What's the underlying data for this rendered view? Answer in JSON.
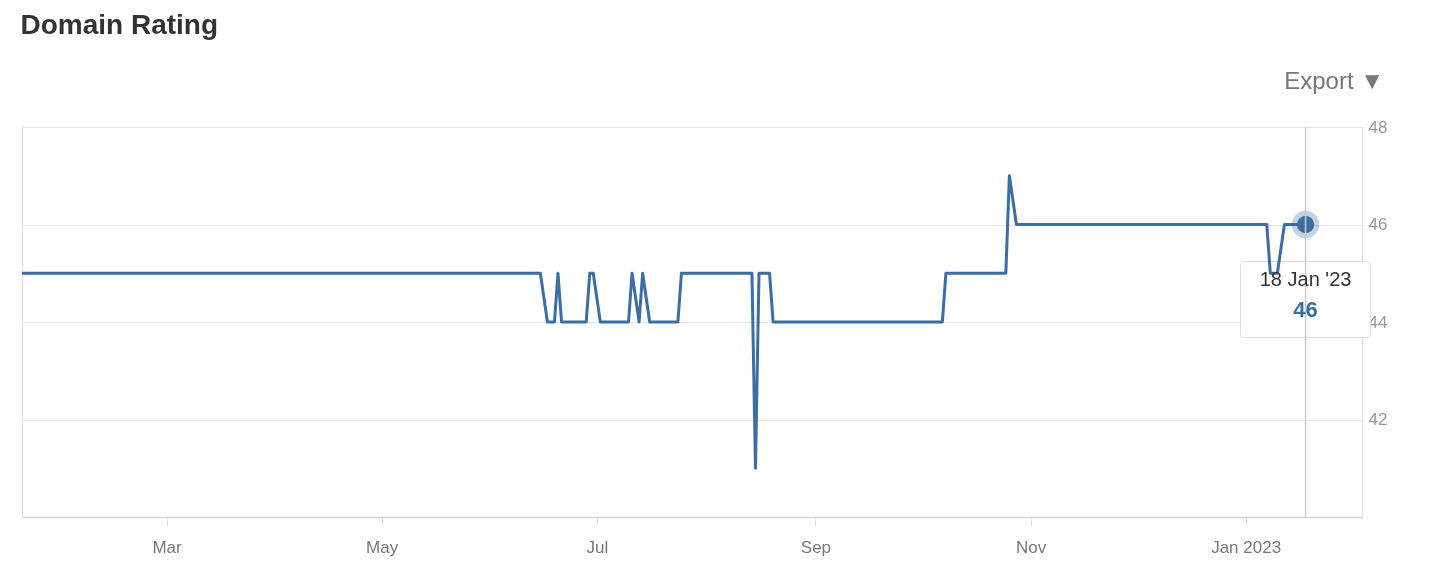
{
  "chart_data": {
    "type": "line",
    "title": "Domain Rating",
    "annotations": [
      "Export ▼",
      {
        "text": "18 Jan '23",
        "x": "2023-01-18",
        "y": 46
      },
      "46"
    ],
    "series": [
      {
        "color": "#3a6ea5",
        "x": [
          "2022-01-19",
          "2022-06-15",
          "2022-06-17",
          "2022-06-19",
          "2022-06-20",
          "2022-06-21",
          "2022-06-28",
          "2022-06-29",
          "2022-06-30",
          "2022-07-02",
          "2022-07-10",
          "2022-07-11",
          "2022-07-13",
          "2022-07-14",
          "2022-07-16",
          "2022-07-24",
          "2022-07-25",
          "2022-08-14",
          "2022-08-15",
          "2022-08-16",
          "2022-08-19",
          "2022-08-20",
          "2022-10-07",
          "2022-10-08",
          "2022-10-25",
          "2022-10-26",
          "2022-10-28",
          "2023-01-07",
          "2023-01-08",
          "2023-01-10",
          "2023-01-12",
          "2023-01-18"
        ],
        "values": [
          45,
          45,
          44,
          44,
          45,
          44,
          44,
          45,
          45,
          44,
          44,
          45,
          44,
          45,
          44,
          44,
          45,
          45,
          41,
          45,
          45,
          44,
          44,
          45,
          45,
          47,
          46,
          46,
          45,
          45,
          46,
          46
        ]
      },
      {
        "type": "scatter",
        "color": "#3a6ea5",
        "marker": "circle",
        "x": [
          "2023-01-18"
        ],
        "values": [
          46
        ]
      }
    ],
    "xlim": [
      "2022-01-19",
      "2023-02-03"
    ],
    "xticks": [
      {
        "value": "2022-03-01",
        "label": "Mar"
      },
      {
        "value": "2022-05-01",
        "label": "May"
      },
      {
        "value": "2022-07-01",
        "label": "Jul"
      },
      {
        "value": "2022-09-01",
        "label": "Sep"
      },
      {
        "value": "2022-11-01",
        "label": "Nov"
      },
      {
        "value": "2023-01-01",
        "label": "Jan 2023"
      }
    ],
    "ylim": [
      40,
      48
    ],
    "yticks": [
      42,
      44,
      46,
      48
    ],
    "grid": "y",
    "marker": "none",
    "line_style": "solid",
    "ref_lines": [
      {
        "axis": "x",
        "value": "2023-01-18",
        "label": null,
        "color": "#cccccc"
      }
    ]
  }
}
